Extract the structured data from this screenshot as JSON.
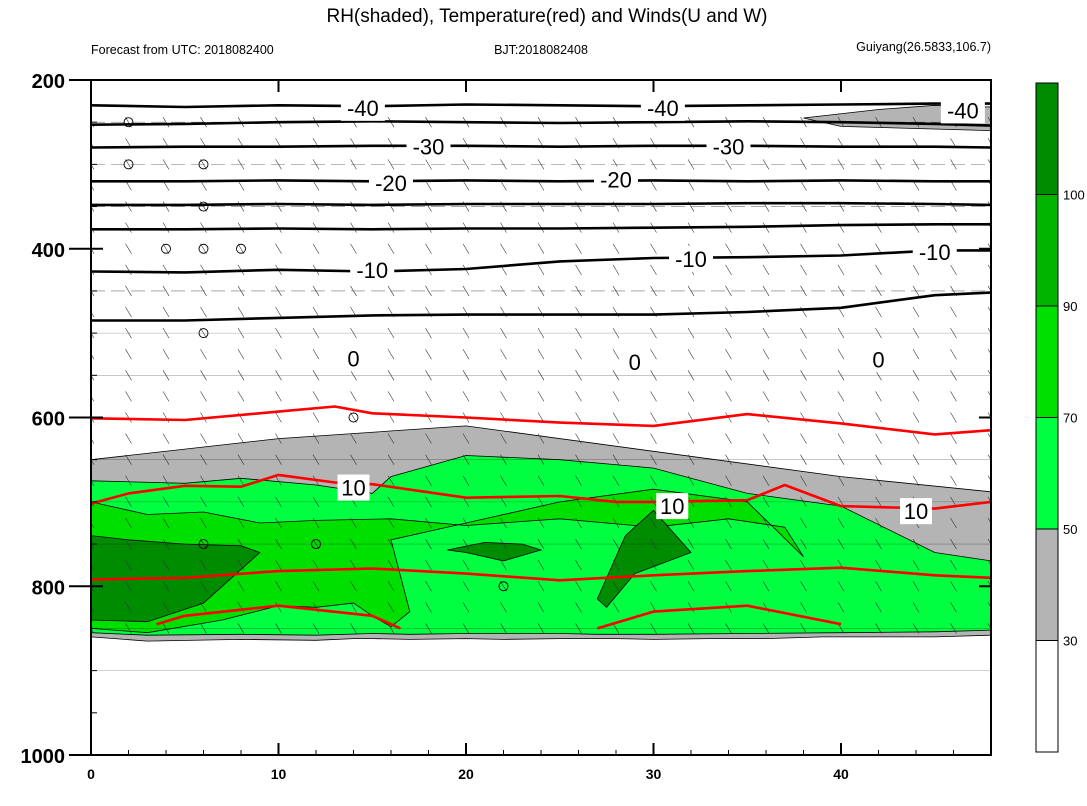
{
  "chart_data": {
    "type": "contour",
    "title": "RH(shaded), Temperature(red) and Winds(U and W)",
    "subtitle_left": "Forecast from UTC: 2018082400",
    "subtitle_center": "BJT:2018082408",
    "subtitle_right": "Guiyang(26.5833,106.7)",
    "x_range": [
      0,
      48
    ],
    "y_range": [
      1000,
      200
    ],
    "x_ticks": [
      0,
      10,
      20,
      30,
      40
    ],
    "x_tick_labels": [
      "0",
      "10",
      "20",
      "30",
      "40"
    ],
    "y_ticks": [
      200,
      400,
      600,
      800,
      1000
    ],
    "y_tick_labels": [
      "200",
      "400",
      "600",
      "800",
      "1000"
    ],
    "colorbar": {
      "levels": [
        30,
        50,
        70,
        90,
        100
      ],
      "labels": [
        "30",
        "50",
        "70",
        "90",
        "100"
      ],
      "colors": [
        "#ffffff",
        "#b4b4b4",
        "#00ff40",
        "#00e000",
        "#00b400",
        "#008c00"
      ]
    },
    "temperature_contours": [
      {
        "value": -40,
        "color": "#000000",
        "x": [
          0,
          5,
          10,
          15,
          20,
          25,
          30,
          35,
          40,
          45,
          48
        ],
        "y": [
          230,
          232,
          230,
          231,
          229,
          230,
          231,
          230,
          229,
          228,
          228
        ]
      },
      {
        "value": -40,
        "color": "#000000",
        "x": [
          0,
          5,
          10,
          15,
          20,
          25,
          30,
          35,
          40,
          45,
          48
        ],
        "y": [
          253,
          252,
          250,
          249,
          250,
          251,
          250,
          249,
          250,
          252,
          254
        ]
      },
      {
        "value": -30,
        "color": "#000000",
        "x": [
          0,
          5,
          10,
          15,
          20,
          25,
          30,
          35,
          40,
          45,
          48
        ],
        "y": [
          280,
          279,
          279,
          278,
          278,
          279,
          278,
          278,
          279,
          279,
          280
        ]
      },
      {
        "value": -20,
        "color": "#000000",
        "x": [
          0,
          5,
          10,
          15,
          20,
          25,
          30,
          35,
          40,
          45,
          48
        ],
        "y": [
          320,
          320,
          319,
          320,
          319,
          320,
          319,
          320,
          319,
          320,
          320
        ]
      },
      {
        "value": -20,
        "color": "#000000",
        "x": [
          0,
          5,
          10,
          15,
          20,
          25,
          30,
          35,
          40,
          45,
          48
        ],
        "y": [
          348,
          348,
          347,
          348,
          347,
          347,
          347,
          346,
          346,
          347,
          348
        ]
      },
      {
        "value": -10,
        "color": "#000000",
        "x": [
          0,
          5,
          10,
          15,
          20,
          25,
          30,
          35,
          40,
          45,
          48
        ],
        "y": [
          377,
          377,
          376,
          377,
          376,
          376,
          375,
          374,
          372,
          371,
          371
        ]
      },
      {
        "value": -10,
        "color": "#000000",
        "x": [
          0,
          5,
          10,
          15,
          20,
          25,
          30,
          35,
          40,
          45,
          48
        ],
        "y": [
          427,
          428,
          425,
          427,
          424,
          415,
          411,
          410,
          408,
          402,
          402
        ]
      },
      {
        "value": -10,
        "color": "#000000",
        "x": [
          0,
          5,
          10,
          15,
          20,
          25,
          30,
          35,
          40,
          45,
          48
        ],
        "y": [
          485,
          485,
          482,
          479,
          478,
          478,
          478,
          475,
          470,
          455,
          452
        ]
      },
      {
        "value": 10,
        "color": "#ff0000",
        "x": [
          0,
          5,
          10,
          13,
          15,
          20,
          25,
          30,
          35,
          40,
          45,
          48
        ],
        "y": [
          601,
          603,
          593,
          587,
          595,
          600,
          606,
          610,
          596,
          607,
          620,
          615
        ]
      },
      {
        "value": 10,
        "color": "#ff0000",
        "x": [
          0,
          2,
          5,
          8,
          10,
          13,
          15,
          20,
          25,
          28,
          30,
          35,
          37,
          40,
          45,
          48
        ],
        "y": [
          702,
          690,
          681,
          682,
          668,
          677,
          679,
          695,
          693,
          700,
          700,
          698,
          680,
          705,
          708,
          700
        ]
      },
      {
        "value": 10,
        "color": "#ff0000",
        "x": [
          0,
          5,
          10,
          15,
          20,
          25,
          30,
          35,
          40,
          45,
          48
        ],
        "y": [
          792,
          790,
          782,
          779,
          785,
          793,
          787,
          782,
          778,
          787,
          790
        ]
      },
      {
        "value": 10,
        "color": "#ff0000",
        "x": [
          3.5,
          5,
          10,
          15,
          16.5
        ],
        "y": [
          845,
          835,
          823,
          835,
          850
        ]
      },
      {
        "value": 10,
        "color": "#ff0000",
        "x": [
          27,
          30,
          35,
          40
        ],
        "y": [
          850,
          830,
          823,
          845
        ]
      }
    ],
    "contour_labels": [
      {
        "text": "-40",
        "x": 14.5,
        "y": 233,
        "color": "#000000"
      },
      {
        "text": "-40",
        "x": 30.5,
        "y": 233,
        "color": "#000000"
      },
      {
        "text": "-40",
        "x": 46.5,
        "y": 236,
        "color": "#000000"
      },
      {
        "text": "-30",
        "x": 18,
        "y": 279,
        "color": "#000000"
      },
      {
        "text": "-30",
        "x": 34,
        "y": 279,
        "color": "#000000"
      },
      {
        "text": "-20",
        "x": 16,
        "y": 322,
        "color": "#000000"
      },
      {
        "text": "-20",
        "x": 28,
        "y": 318,
        "color": "#000000"
      },
      {
        "text": "-10",
        "x": 15,
        "y": 425,
        "color": "#000000"
      },
      {
        "text": "-10",
        "x": 32,
        "y": 412,
        "color": "#000000"
      },
      {
        "text": "-10",
        "x": 45,
        "y": 404,
        "color": "#000000"
      },
      {
        "text": "0",
        "x": 14,
        "y": 530,
        "color": "#000000"
      },
      {
        "text": "0",
        "x": 29,
        "y": 534,
        "color": "#000000"
      },
      {
        "text": "0",
        "x": 42,
        "y": 531,
        "color": "#000000"
      },
      {
        "text": "10",
        "x": 14,
        "y": 683,
        "color": "#000000"
      },
      {
        "text": "10",
        "x": 31,
        "y": 705,
        "color": "#000000"
      },
      {
        "text": "10",
        "x": 44,
        "y": 711,
        "color": "#000000"
      }
    ],
    "rh_regions": [
      {
        "level": "30-50",
        "color": "#b4b4b4",
        "x": [
          0,
          0,
          3,
          8,
          12,
          14,
          15,
          17,
          20,
          22,
          25,
          28,
          30,
          33,
          36,
          39,
          42,
          45,
          48,
          48,
          40,
          30,
          20,
          10,
          0
        ],
        "y": [
          650,
          860,
          865,
          863,
          864,
          862,
          862,
          863,
          862,
          863,
          862,
          862,
          863,
          862,
          862,
          860,
          860,
          860,
          858,
          688,
          670,
          640,
          610,
          625,
          650
        ]
      },
      {
        "level": "30-50",
        "color": "#b4b4b4",
        "x": [
          38,
          42,
          45,
          48,
          48,
          40
        ],
        "y": [
          245,
          235,
          230,
          232,
          260,
          255
        ]
      },
      {
        "level": "50-70",
        "color": "#00ff40",
        "x": [
          0,
          0,
          3,
          8,
          12,
          15,
          17,
          20,
          25,
          27,
          30,
          35,
          40,
          45,
          48,
          48,
          45,
          40,
          35,
          30,
          25,
          20,
          16,
          15,
          12,
          8,
          5,
          0
        ],
        "y": [
          675,
          855,
          858,
          857,
          858,
          856,
          857,
          856,
          856,
          857,
          857,
          856,
          855,
          854,
          852,
          770,
          760,
          705,
          690,
          660,
          650,
          645,
          670,
          690,
          680,
          672,
          678,
          675
        ]
      },
      {
        "level": "70-90",
        "color": "#00e000",
        "x": [
          0,
          0,
          3,
          7,
          10,
          12,
          14,
          15,
          16,
          17,
          16,
          20,
          25,
          30,
          35,
          38,
          37,
          34,
          30,
          25,
          20,
          16,
          12,
          9,
          6,
          3,
          0
        ],
        "y": [
          700,
          850,
          855,
          840,
          823,
          825,
          820,
          835,
          848,
          830,
          745,
          725,
          700,
          685,
          700,
          765,
          730,
          720,
          730,
          720,
          728,
          720,
          722,
          725,
          712,
          715,
          700
        ]
      },
      {
        "level": "90-100",
        "color": "#008c00",
        "x": [
          0,
          0,
          3,
          6,
          9,
          8,
          5,
          2,
          0
        ],
        "y": [
          740,
          840,
          842,
          820,
          760,
          752,
          750,
          745,
          740
        ]
      },
      {
        "level": "90-100",
        "color": "#008c00",
        "x": [
          19,
          20,
          22,
          24,
          23,
          21,
          19
        ],
        "y": [
          757,
          760,
          770,
          757,
          750,
          748,
          757
        ]
      },
      {
        "level": "90-100",
        "color": "#008c00",
        "x": [
          27,
          27.5,
          29,
          32,
          30,
          28.5,
          27
        ],
        "y": [
          815,
          825,
          785,
          760,
          710,
          740,
          815
        ]
      }
    ]
  }
}
